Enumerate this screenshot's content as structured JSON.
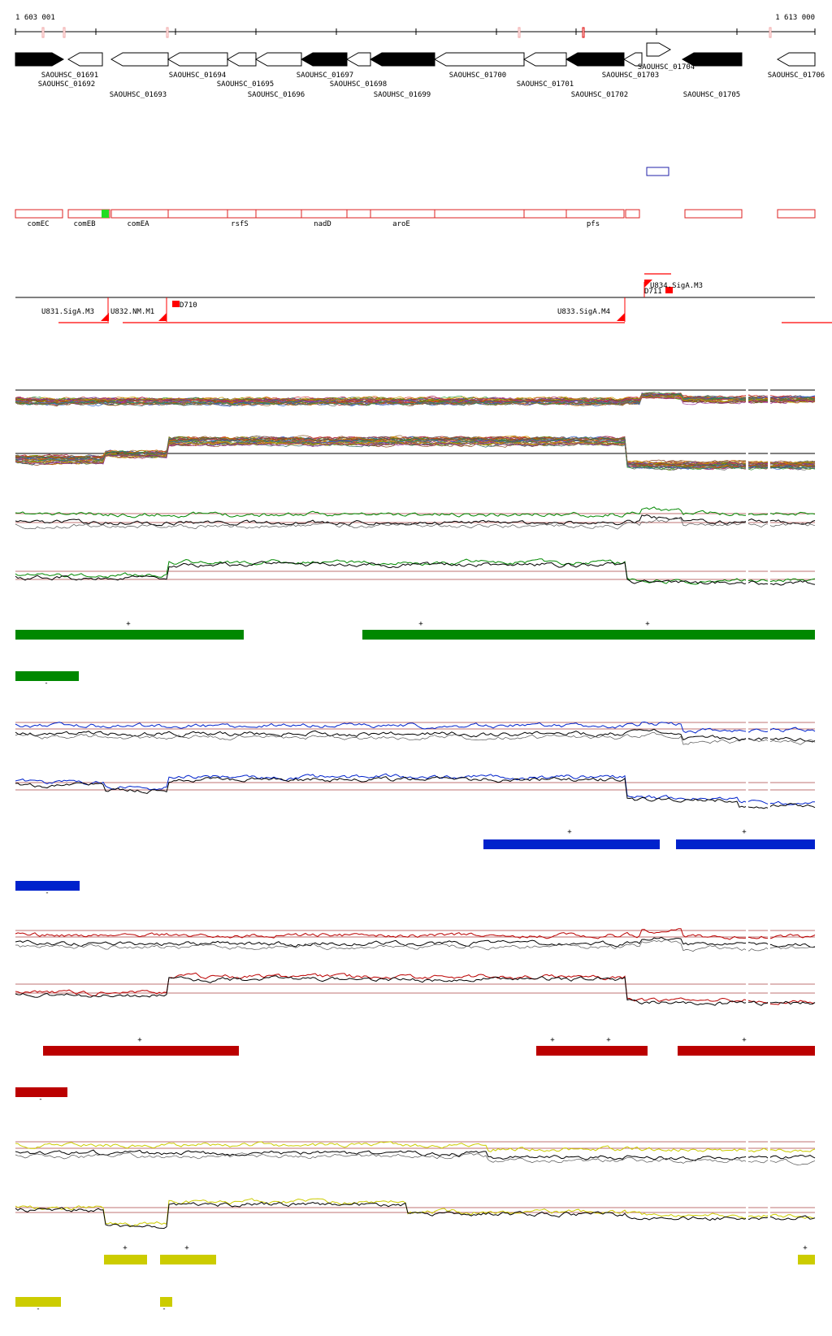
{
  "coords": {
    "start": "1 603 001",
    "end": "1 613 000"
  },
  "genes": [
    {
      "label": "SAOUHSC_01691",
      "strand": "+",
      "fill": "black"
    },
    {
      "label": "SAOUHSC_01692",
      "strand": "-",
      "fill": "white"
    },
    {
      "label": "SAOUHSC_01693",
      "strand": "-",
      "fill": "white"
    },
    {
      "label": "SAOUHSC_01694",
      "strand": "-",
      "fill": "white"
    },
    {
      "label": "SAOUHSC_01695",
      "strand": "-",
      "fill": "white"
    },
    {
      "label": "SAOUHSC_01696",
      "strand": "-",
      "fill": "white"
    },
    {
      "label": "SAOUHSC_01697",
      "strand": "-",
      "fill": "black"
    },
    {
      "label": "SAOUHSC_01698",
      "strand": "-",
      "fill": "white"
    },
    {
      "label": "SAOUHSC_01699",
      "strand": "-",
      "fill": "black"
    },
    {
      "label": "SAOUHSC_01700",
      "strand": "-",
      "fill": "white"
    },
    {
      "label": "SAOUHSC_01701",
      "strand": "-",
      "fill": "white"
    },
    {
      "label": "SAOUHSC_01702",
      "strand": "-",
      "fill": "black"
    },
    {
      "label": "SAOUHSC_01703",
      "strand": "-",
      "fill": "white"
    },
    {
      "label": "SAOUHSC_01704",
      "strand": "+",
      "fill": "white"
    },
    {
      "label": "SAOUHSC_01705",
      "strand": "-",
      "fill": "black"
    },
    {
      "label": "SAOUHSC_01706",
      "strand": "-",
      "fill": "white"
    }
  ],
  "gene_names": [
    "comEC",
    "comEB",
    "comEA",
    "rsfS",
    "nadD",
    "aroE",
    "pfs"
  ],
  "features": [
    {
      "label": "U831.SigA.M3"
    },
    {
      "label": "U832.NM.M1"
    },
    {
      "label": "D710"
    },
    {
      "label": "U833.SigA.M4"
    },
    {
      "label": "U834.SigA.M3"
    },
    {
      "label": "D711"
    }
  ],
  "colors": {
    "green": "#008800",
    "blue": "#0022cc",
    "red": "#bb0000",
    "yellow": "#cccc00",
    "feature_red": "#ff0000",
    "cds_outline": "#dd2222"
  },
  "condition_groups": [
    {
      "name": "green",
      "plus_marks": [
        "+",
        "+",
        "+"
      ],
      "minus_marks": [
        "-"
      ]
    },
    {
      "name": "blue",
      "plus_marks": [
        "+",
        "+"
      ],
      "minus_marks": [
        "-"
      ]
    },
    {
      "name": "red",
      "plus_marks": [
        "+",
        "+",
        "+",
        "+"
      ],
      "minus_marks": [
        "-"
      ]
    },
    {
      "name": "yellow",
      "plus_marks": [
        "+",
        "+",
        "+"
      ],
      "minus_marks": [
        "-",
        "-"
      ]
    }
  ]
}
